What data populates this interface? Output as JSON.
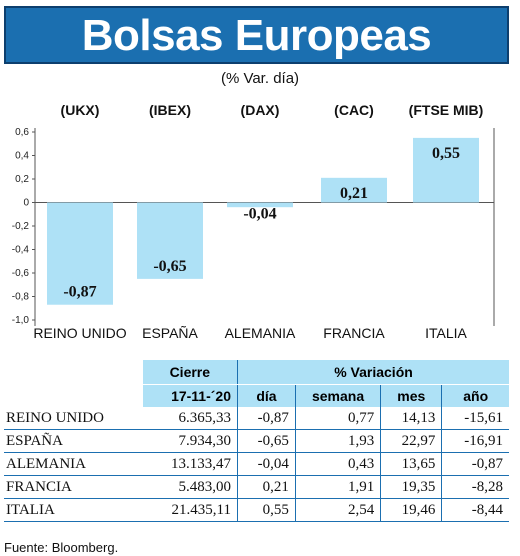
{
  "header": {
    "title": "Bolsas Europeas",
    "subtitle": "(% Var. día)"
  },
  "chart_data": {
    "type": "bar",
    "codes": [
      "(UKX)",
      "(IBEX)",
      "(DAX)",
      "(CAC)",
      "(FTSE MIB)"
    ],
    "categories": [
      "REINO UNIDO",
      "ESPAÑA",
      "ALEMANIA",
      "FRANCIA",
      "ITALIA"
    ],
    "values": [
      -0.87,
      -0.65,
      -0.04,
      0.21,
      0.55
    ],
    "value_labels": [
      "-0,87",
      "-0,65",
      "-0,04",
      "0,21",
      "0,55"
    ],
    "ylim": [
      -1.0,
      0.6
    ],
    "yticks": [
      0.6,
      0.4,
      0.2,
      0,
      -0.2,
      -0.4,
      -0.6,
      -0.8,
      -1.0
    ],
    "ytick_labels": [
      "0,6",
      "0,4",
      "0,2",
      "0",
      "-0,2",
      "-0,4",
      "-0,6",
      "-0,8",
      "-1,0"
    ],
    "bar_color": "#aee1f6",
    "grid": false
  },
  "table": {
    "group_headers": {
      "cierre": "Cierre",
      "variacion": "% Variación"
    },
    "sub_headers": {
      "date": "17-11-´20",
      "dia": "día",
      "semana": "semana",
      "mes": "mes",
      "anio": "año"
    },
    "rows": [
      {
        "name": "REINO UNIDO",
        "cierre": "6.365,33",
        "dia": "-0,87",
        "semana": "0,77",
        "mes": "14,13",
        "anio": "-15,61"
      },
      {
        "name": "ESPAÑA",
        "cierre": "7.934,30",
        "dia": "-0,65",
        "semana": "1,93",
        "mes": "22,97",
        "anio": "-16,91"
      },
      {
        "name": "ALEMANIA",
        "cierre": "13.133,47",
        "dia": "-0,04",
        "semana": "0,43",
        "mes": "13,65",
        "anio": "-0,87"
      },
      {
        "name": "FRANCIA",
        "cierre": "5.483,00",
        "dia": "0,21",
        "semana": "1,91",
        "mes": "19,35",
        "anio": "-8,28"
      },
      {
        "name": "ITALIA",
        "cierre": "21.435,11",
        "dia": "0,55",
        "semana": "2,54",
        "mes": "19,46",
        "anio": "-8,44"
      }
    ]
  },
  "source": "Fuente: Bloomberg.",
  "colors": {
    "banner": "#1b6fb0",
    "accent_light": "#aee1f6"
  }
}
